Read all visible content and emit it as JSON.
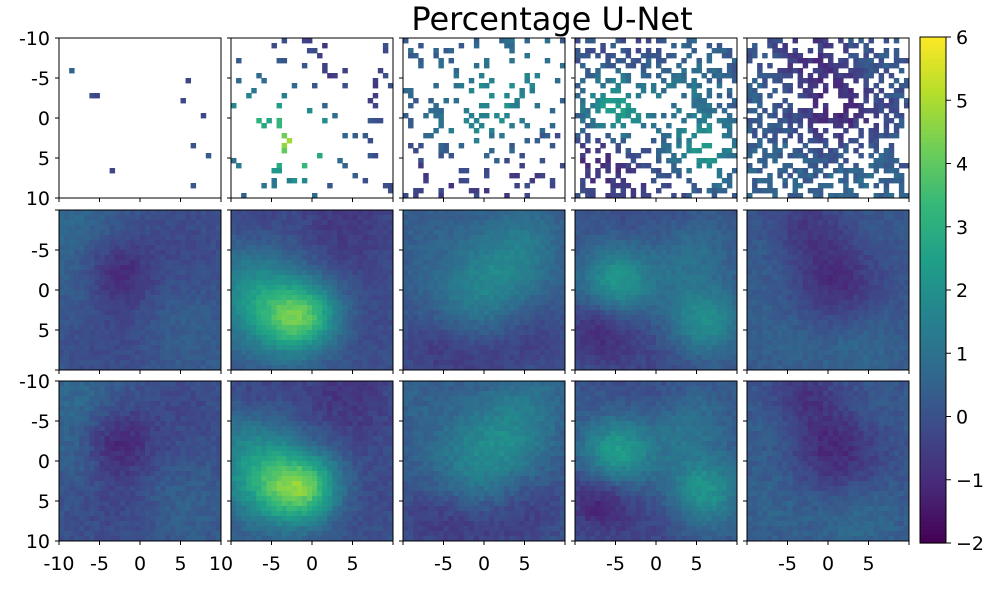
{
  "chart_data": {
    "type": "heatmap",
    "title": "Percentage U-Net",
    "layout": {
      "rows": 3,
      "cols": 5
    },
    "grid_resolution": 32,
    "axis": {
      "xlim": [
        -10,
        10
      ],
      "ylim": [
        -10,
        10
      ],
      "y_inverted": true,
      "x_tick_labels_col0": [
        "-10",
        "-5",
        "0",
        "5",
        "10"
      ],
      "x_tick_labels_other": [
        "-5",
        "0",
        "5"
      ],
      "y_tick_labels_top": [
        "-10",
        "-5",
        "0",
        "5",
        "10"
      ],
      "y_tick_labels_middle": [
        "-5",
        "0",
        "5"
      ],
      "y_tick_labels_bottom": [
        "-10",
        "-5",
        "0",
        "5",
        "10"
      ]
    },
    "colorbar": {
      "min": -2,
      "max": 6,
      "ticks": [
        6,
        5,
        4,
        3,
        2,
        1,
        0,
        -1,
        -2
      ],
      "tick_labels": [
        "6",
        "5",
        "4",
        "3",
        "2",
        "1",
        "0",
        "−1",
        "−2"
      ],
      "colormap": "viridis",
      "viridis_stops": [
        "#440154",
        "#482878",
        "#3e4989",
        "#31688e",
        "#26828e",
        "#1f9e89",
        "#35b779",
        "#6ece58",
        "#b5de2b",
        "#fde725"
      ]
    },
    "rows": [
      {
        "row": "top",
        "description_kind": "sparse observed pixels",
        "observed_fraction": [
          0.012,
          0.08,
          0.15,
          0.38,
          0.55
        ]
      },
      {
        "row": "middle",
        "description_kind": "reconstructed field"
      },
      {
        "row": "bottom",
        "description_kind": "reference field"
      }
    ],
    "fields": [
      {
        "panel": 1,
        "blobs": [
          [
            -8,
            -8,
            4,
            0.6
          ],
          [
            -7,
            0,
            3,
            0.5
          ],
          [
            5,
            -5,
            5,
            -0.4
          ],
          [
            -3,
            -2,
            3,
            -1.2
          ],
          [
            -2,
            5,
            5,
            -0.5
          ],
          [
            6,
            7,
            4,
            0.2
          ],
          [
            3,
            3,
            4,
            0.4
          ]
        ]
      },
      {
        "panel": 2,
        "blobs": [
          [
            -7,
            1,
            4,
            2.0
          ],
          [
            -3,
            4,
            3,
            2.1
          ],
          [
            0,
            3,
            3,
            2.4
          ],
          [
            -6,
            -5,
            4,
            0.3
          ],
          [
            4,
            -8,
            5,
            -0.9
          ],
          [
            6,
            5,
            4,
            -0.4
          ],
          [
            -7,
            -9,
            3,
            -0.6
          ]
        ]
      },
      {
        "panel": 3,
        "blobs": [
          [
            3,
            -3,
            4,
            1.4
          ],
          [
            -2,
            1,
            4,
            1.0
          ],
          [
            6,
            6,
            3,
            -0.6
          ],
          [
            -6,
            7,
            3,
            -0.8
          ],
          [
            0,
            9,
            3,
            -0.6
          ],
          [
            -8,
            -8,
            4,
            0.3
          ],
          [
            6,
            -8,
            3,
            0.5
          ]
        ]
      },
      {
        "panel": 4,
        "blobs": [
          [
            -5,
            -1,
            3,
            2.3
          ],
          [
            6,
            4,
            3,
            2.0
          ],
          [
            -7,
            5,
            3,
            -1.3
          ],
          [
            2,
            -3,
            4,
            0.6
          ],
          [
            0,
            9,
            4,
            -0.5
          ],
          [
            -1,
            -9,
            4,
            -0.4
          ],
          [
            5,
            -5,
            3,
            0.5
          ]
        ]
      },
      {
        "panel": 5,
        "blobs": [
          [
            1,
            -1,
            4,
            -1.3
          ],
          [
            -3,
            -8,
            3,
            -0.8
          ],
          [
            -6,
            5,
            4,
            0.4
          ],
          [
            4,
            7,
            4,
            0.6
          ],
          [
            -7,
            -4,
            3,
            0.3
          ],
          [
            6,
            -6,
            3,
            0.2
          ]
        ]
      }
    ]
  }
}
